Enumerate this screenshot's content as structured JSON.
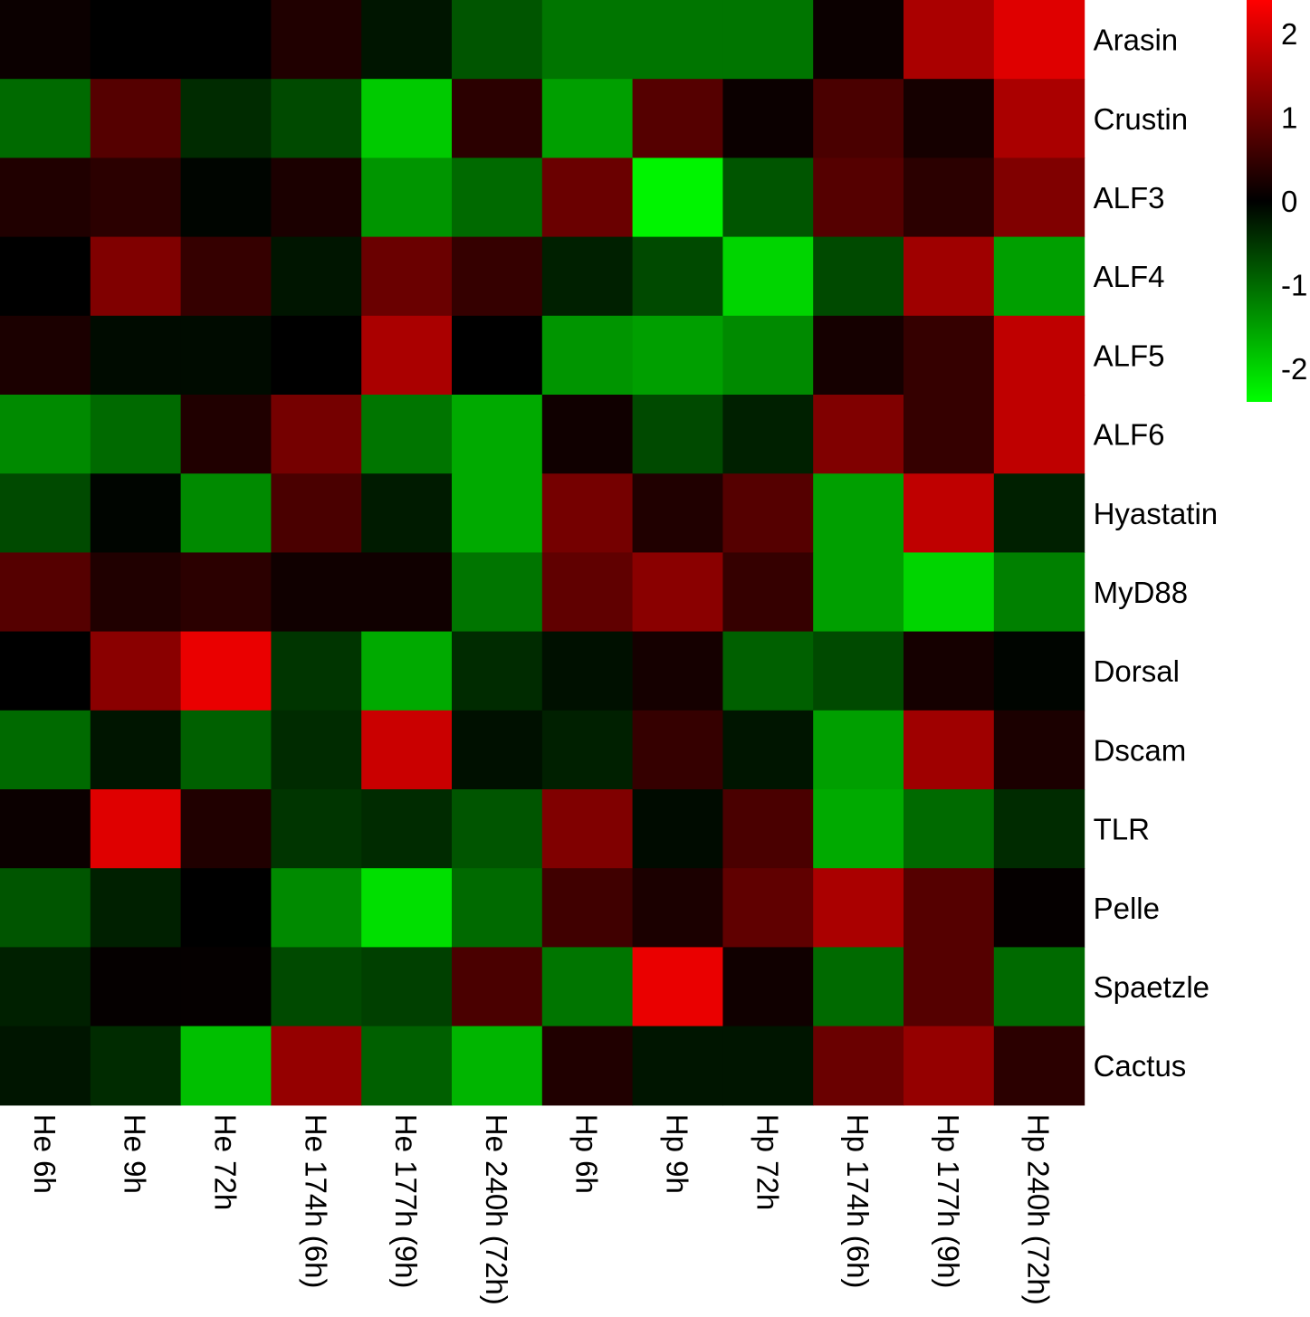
{
  "chart_data": {
    "type": "heatmap",
    "rows": [
      "Arasin",
      "Crustin",
      "ALF3",
      "ALF4",
      "ALF5",
      "ALF6",
      "Hyastatin",
      "MyD88",
      "Dorsal",
      "Dscam",
      "TLR",
      "Pelle",
      "Spaetzle",
      "Cactus"
    ],
    "columns": [
      "He 6h",
      "He 9h",
      "He 72h",
      "He 174h (6h)",
      "He 177h (9h)",
      "He 240h (72h)",
      "Hp 6h",
      "Hp 9h",
      "Hp 72h",
      "Hp 174h (6h)",
      "Hp 177h (9h)",
      "Hp 240h (72h)"
    ],
    "values": [
      [
        0.1,
        0.0,
        0.0,
        0.3,
        -0.2,
        -0.8,
        -1.1,
        -1.1,
        -1.1,
        0.1,
        1.6,
        2.1
      ],
      [
        -1.0,
        0.8,
        -0.4,
        -0.7,
        -1.9,
        0.4,
        -1.5,
        0.8,
        0.1,
        0.7,
        0.2,
        1.6
      ],
      [
        0.3,
        0.4,
        -0.05,
        0.25,
        -1.4,
        -1.0,
        1.0,
        -2.3,
        -0.8,
        0.8,
        0.4,
        1.2
      ],
      [
        0.0,
        1.2,
        0.5,
        -0.2,
        1.0,
        0.5,
        -0.3,
        -0.7,
        -2.0,
        -0.7,
        1.5,
        -1.5
      ],
      [
        0.25,
        -0.1,
        -0.1,
        0.0,
        1.6,
        0.0,
        -1.4,
        -1.5,
        -1.3,
        0.2,
        0.5,
        1.8
      ],
      [
        -1.3,
        -1.0,
        0.3,
        1.1,
        -1.1,
        -1.6,
        0.15,
        -0.7,
        -0.3,
        1.2,
        0.5,
        1.8
      ],
      [
        -0.7,
        -0.05,
        -1.3,
        0.7,
        -0.25,
        -1.6,
        1.1,
        0.3,
        0.8,
        -1.5,
        1.8,
        -0.3
      ],
      [
        0.8,
        0.3,
        0.4,
        0.15,
        0.15,
        -1.1,
        0.9,
        1.3,
        0.5,
        -1.5,
        -2.0,
        -1.2
      ],
      [
        0.0,
        1.3,
        2.2,
        -0.5,
        -1.6,
        -0.4,
        -0.15,
        0.2,
        -0.9,
        -0.7,
        0.2,
        -0.05
      ],
      [
        -1.0,
        -0.2,
        -0.9,
        -0.4,
        1.9,
        -0.15,
        -0.3,
        0.5,
        -0.2,
        -1.5,
        1.5,
        0.25
      ],
      [
        0.1,
        2.1,
        0.3,
        -0.5,
        -0.4,
        -0.8,
        1.2,
        -0.1,
        0.7,
        -1.6,
        -1.0,
        -0.4
      ],
      [
        -0.8,
        -0.3,
        0.0,
        -1.3,
        -2.1,
        -1.0,
        0.6,
        0.25,
        0.9,
        1.6,
        0.8,
        0.05
      ],
      [
        -0.3,
        0.05,
        0.05,
        -0.7,
        -0.6,
        0.7,
        -1.1,
        2.2,
        0.15,
        -1.0,
        0.8,
        -1.0
      ],
      [
        -0.2,
        -0.4,
        -1.8,
        1.4,
        -0.9,
        -1.7,
        0.3,
        -0.2,
        -0.2,
        1.0,
        1.4,
        0.4
      ]
    ],
    "color_scale": {
      "low": "#00ff00",
      "mid": "#000000",
      "high": "#ff0000",
      "range": [
        -2.4,
        2.4
      ],
      "ticks": [
        2,
        1,
        0,
        -1,
        -2
      ],
      "tick_labels": [
        "2",
        "1",
        "0",
        "-1",
        "-2"
      ]
    },
    "row_labels_position": "right",
    "column_labels_position": "bottom",
    "column_label_rotation": "90 degrees clockwise",
    "legend_position": "top-right"
  }
}
